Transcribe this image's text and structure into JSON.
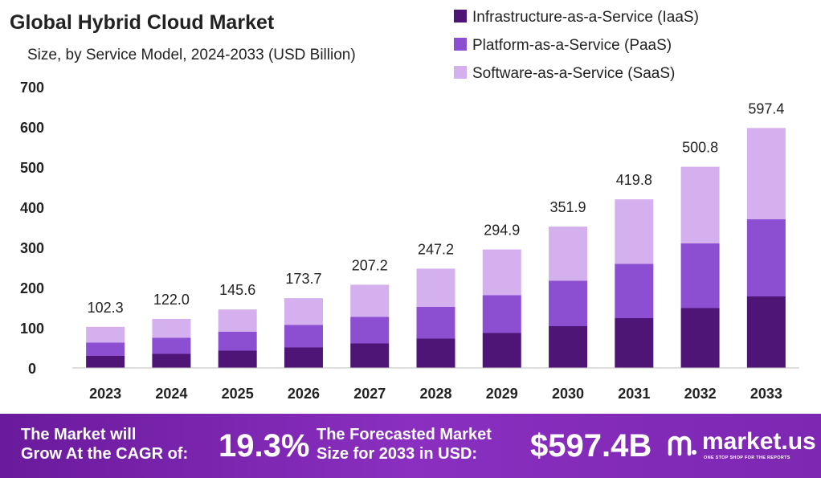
{
  "chart_data": {
    "type": "stacked-bar",
    "title": "Global Hybrid Cloud Market",
    "subtitle": "Size, by Service Model, 2024-2033 (USD Billion)",
    "xlabel": "",
    "ylabel": "",
    "ylim": [
      0,
      700
    ],
    "yticks": [
      0,
      100,
      200,
      300,
      400,
      500,
      600,
      700
    ],
    "grid": false,
    "legend_position": "top-right",
    "categories": [
      "2023",
      "2024",
      "2025",
      "2026",
      "2027",
      "2028",
      "2029",
      "2030",
      "2031",
      "2032",
      "2033"
    ],
    "totals": [
      102.3,
      122.0,
      145.6,
      173.7,
      207.2,
      247.2,
      294.9,
      351.9,
      419.8,
      500.8,
      597.4
    ],
    "total_labels": [
      "102.3",
      "122.0",
      "145.6",
      "173.7",
      "207.2",
      "247.2",
      "294.9",
      "351.9",
      "419.8",
      "500.8",
      "597.4"
    ],
    "series": [
      {
        "name": "Infrastructure-as-a-Service (IaaS)",
        "color": "#4e1577",
        "values": [
          30,
          35,
          43,
          51,
          61,
          73,
          87,
          104,
          124,
          149,
          178
        ]
      },
      {
        "name": "Platform-as-a-Service (PaaS)",
        "color": "#8d4fd1",
        "values": [
          33,
          40,
          47,
          56,
          66,
          79,
          94,
          113,
          135,
          161,
          192
        ]
      },
      {
        "name": "Software-as-a-Service (SaaS)",
        "color": "#d5b0ef",
        "values": [
          39.3,
          47.0,
          55.6,
          66.7,
          80.2,
          95.2,
          113.9,
          134.9,
          160.8,
          190.8,
          227.4
        ]
      }
    ]
  },
  "footer": {
    "cagr_label_line1": "The Market will",
    "cagr_label_line2": "Grow At the CAGR of:",
    "cagr_value": "19.3%",
    "forecast_label_line1": "The Forecasted Market",
    "forecast_label_line2": "Size for 2033 in USD:",
    "forecast_value": "$597.4B",
    "brand_name": "market.us",
    "brand_tagline": "ONE STOP SHOP FOR THE REPORTS"
  },
  "colors": {
    "footer_bg": "#7a24b0",
    "axis": "#bdbdbd",
    "text": "#222222"
  }
}
